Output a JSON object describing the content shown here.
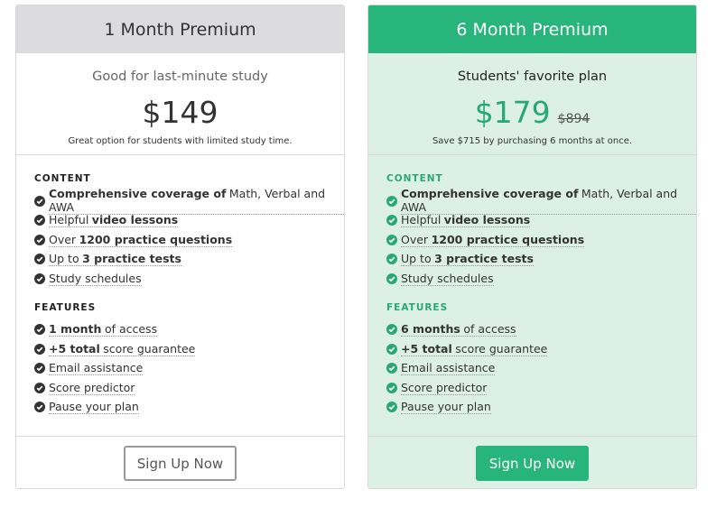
{
  "plans": [
    {
      "header": "1 Month Premium",
      "header_bg": "#dcdcde",
      "header_color": "#333333",
      "body_bg": "#ffffff",
      "accent": "#333333",
      "tagline": "Good for last-minute study",
      "price": "$149",
      "note": "Great option for students with limited study time.",
      "sections": [
        {
          "label": "CONTENT",
          "items": [
            [
              {
                "text": "Comprehensive coverage of",
                "strong": true
              },
              {
                "text": "Math, Verbal and AWA"
              }
            ],
            [
              {
                "text": "Helpful"
              },
              {
                "text": "video lessons",
                "strong": true
              }
            ],
            [
              {
                "text": "Over"
              },
              {
                "text": "1200 practice questions",
                "strong": true
              }
            ],
            [
              {
                "text": "Up to"
              },
              {
                "text": "3 practice tests",
                "strong": true
              }
            ],
            [
              {
                "text": "Study schedules"
              }
            ]
          ]
        },
        {
          "label": "FEATURES",
          "items": [
            [
              {
                "text": "1 month",
                "strong": true
              },
              {
                "text": "of access"
              }
            ],
            [
              {
                "text": "+5 total",
                "strong": true
              },
              {
                "text": "score guarantee"
              }
            ],
            [
              {
                "text": "Email assistance"
              }
            ],
            [
              {
                "text": "Score predictor"
              }
            ],
            [
              {
                "text": "Pause your plan"
              }
            ]
          ]
        }
      ],
      "button": "Sign Up Now",
      "button_bg": "#ffffff",
      "button_color": "#555555",
      "button_border": "#999999"
    },
    {
      "header": "6 Month Premium",
      "header_bg": "#27b57b",
      "header_color": "#ffffff",
      "body_bg": "#dcf0e6",
      "accent": "#2aa874",
      "tagline": "Students' favorite plan",
      "price": "$179",
      "old_price": "$894",
      "note": "Save $715 by purchasing 6 months at once.",
      "sections": [
        {
          "label": "CONTENT",
          "items": [
            [
              {
                "text": "Comprehensive coverage of",
                "strong": true
              },
              {
                "text": "Math, Verbal and AWA"
              }
            ],
            [
              {
                "text": "Helpful"
              },
              {
                "text": "video lessons",
                "strong": true
              }
            ],
            [
              {
                "text": "Over"
              },
              {
                "text": "1200 practice questions",
                "strong": true
              }
            ],
            [
              {
                "text": "Up to"
              },
              {
                "text": "3 practice tests",
                "strong": true
              }
            ],
            [
              {
                "text": "Study schedules"
              }
            ]
          ]
        },
        {
          "label": "FEATURES",
          "items": [
            [
              {
                "text": "6 months",
                "strong": true
              },
              {
                "text": "of access"
              }
            ],
            [
              {
                "text": "+5 total",
                "strong": true
              },
              {
                "text": "score guarantee"
              }
            ],
            [
              {
                "text": "Email assistance"
              }
            ],
            [
              {
                "text": "Score predictor"
              }
            ],
            [
              {
                "text": "Pause your plan"
              }
            ]
          ]
        }
      ],
      "button": "Sign Up Now",
      "button_bg": "#27b57b",
      "button_color": "#ffffff",
      "button_border": "#27b57b"
    }
  ]
}
